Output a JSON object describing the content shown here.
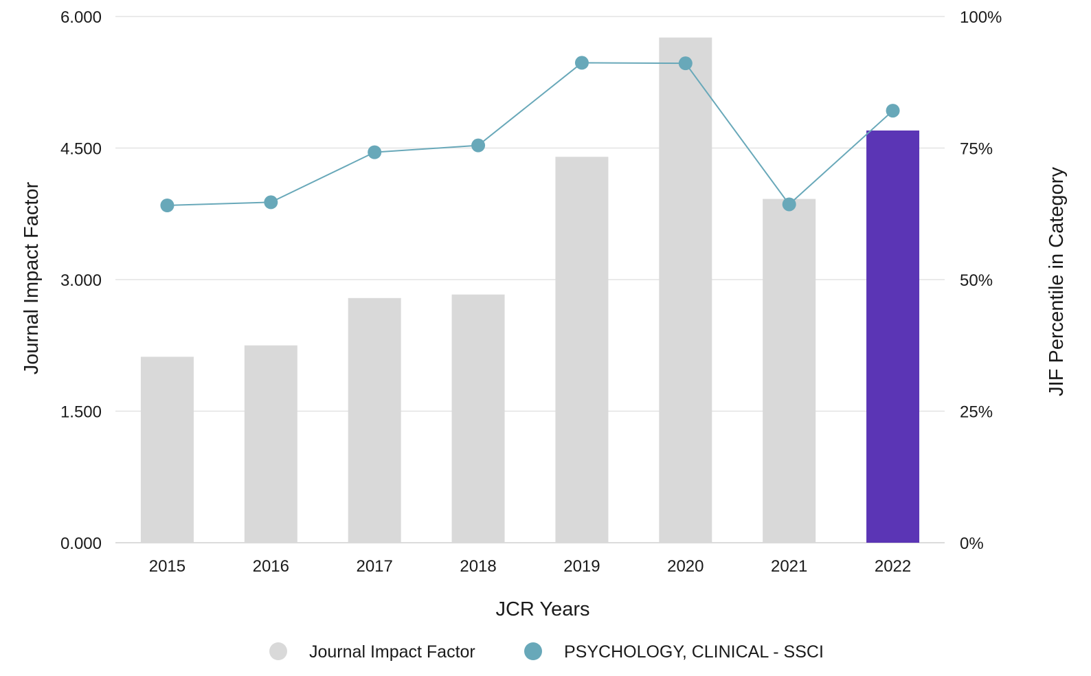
{
  "chart_data": {
    "type": "bar",
    "categories": [
      "2015",
      "2016",
      "2017",
      "2018",
      "2019",
      "2020",
      "2021",
      "2022"
    ],
    "series": [
      {
        "name": "Journal Impact Factor",
        "type": "bar",
        "axis": "left",
        "values": [
          2.12,
          2.25,
          2.79,
          2.83,
          4.4,
          5.76,
          3.92,
          4.7
        ],
        "color": "#d9d9d9",
        "highlight_color": "#5b35b5",
        "highlight_category": "2022"
      },
      {
        "name": "PSYCHOLOGY, CLINICAL - SSCI",
        "type": "line",
        "axis": "right",
        "values": [
          64.1,
          64.7,
          74.2,
          75.5,
          91.2,
          91.1,
          64.3,
          82.1
        ],
        "color": "#68a8b9"
      }
    ],
    "xlabel": "JCR Years",
    "ylabel": "Journal Impact Factor",
    "y2label": "JIF Percentile in Category",
    "ylim": [
      0,
      6
    ],
    "y2lim": [
      0,
      100
    ],
    "yticks": [
      "0.000",
      "1.500",
      "3.000",
      "4.500",
      "6.000"
    ],
    "y2ticks": [
      "0%",
      "25%",
      "50%",
      "75%",
      "100%"
    ],
    "grid": true,
    "legend_position": "bottom-center"
  }
}
